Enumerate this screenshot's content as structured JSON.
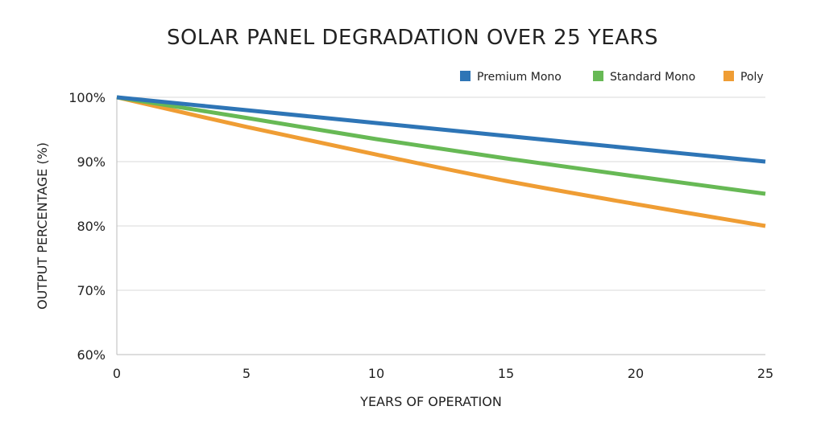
{
  "chart_data": {
    "type": "line",
    "title": "SOLAR PANEL DEGRADATION OVER 25 YEARS",
    "xlabel": "YEARS OF OPERATION",
    "ylabel": "OUTPUT PERCENTAGE (%)",
    "xlim": [
      0,
      25
    ],
    "ylim": [
      60,
      100
    ],
    "xticks": [
      0,
      5,
      10,
      15,
      20,
      25
    ],
    "xtick_labels": [
      "0",
      "5",
      "10",
      "15",
      "20",
      "25"
    ],
    "yticks": [
      60,
      70,
      80,
      90,
      100
    ],
    "ytick_labels": [
      "60%",
      "70%",
      "80%",
      "90%",
      "100%"
    ],
    "grid": "horizontal",
    "legend_position": "top-right",
    "x": [
      0,
      5,
      10,
      15,
      20,
      25
    ],
    "series": [
      {
        "name": "Premium Mono",
        "color": "#2e75b6",
        "values": [
          100,
          98,
          96,
          94,
          92,
          90
        ]
      },
      {
        "name": "Standard Mono",
        "color": "#67b955",
        "values": [
          100,
          96.8,
          93.5,
          90.5,
          87.7,
          85
        ]
      },
      {
        "name": "Poly",
        "color": "#ef9d34",
        "values": [
          100,
          95.4,
          91.1,
          87.0,
          83.4,
          80
        ]
      }
    ]
  }
}
